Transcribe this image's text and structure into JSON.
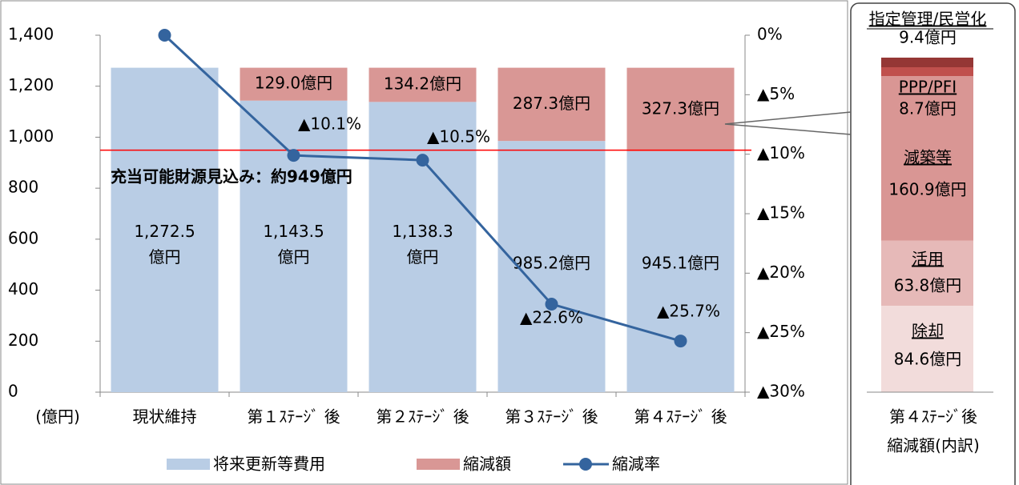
{
  "chart_data": {
    "type": "bar",
    "categories": [
      "現状維持",
      "第１ｽﾃｰｼﾞ 後",
      "第２ｽﾃｰｼﾞ 後",
      "第３ｽﾃｰｼﾞ 後",
      "第４ｽﾃｰｼﾞ 後"
    ],
    "series": [
      {
        "name": "将来更新等費用",
        "color": "#b9cde5",
        "values": [
          1272.5,
          1143.5,
          1138.3,
          985.2,
          945.1
        ],
        "value_labels": [
          "1,272.5\n億円",
          "1,143.5\n億円",
          "1,138.3\n億円",
          "985.2億円",
          "945.1億円"
        ]
      },
      {
        "name": "縮減額",
        "color": "#d99795",
        "values": [
          null,
          129.0,
          134.2,
          287.3,
          327.3
        ],
        "value_labels": [
          null,
          "129.0億円",
          "134.2億円",
          "287.3億円",
          "327.3億円"
        ]
      },
      {
        "name": "縮減率",
        "type": "line",
        "axis": "y2",
        "color": "#34649e",
        "label_color": "#4f81bd",
        "values": [
          0,
          -10.1,
          -10.5,
          -22.6,
          -25.7
        ],
        "value_labels": [
          null,
          "▲10.1%",
          "▲10.5%",
          "▲22.6%",
          "▲25.7%"
        ]
      }
    ],
    "y_unit_label": "(億円)",
    "ylim": [
      0,
      1400
    ],
    "yticks": [
      0,
      200,
      400,
      600,
      800,
      {
        "value": 1000,
        "label": "1,000"
      },
      {
        "value": 1200,
        "label": "1,200"
      },
      {
        "value": 1400,
        "label": "1,400"
      }
    ],
    "y2lim": [
      -30,
      0
    ],
    "y2ticks": [
      {
        "value": -30,
        "label": "▲30%"
      },
      {
        "value": -25,
        "label": "▲25%"
      },
      {
        "value": -20,
        "label": "▲20%"
      },
      {
        "value": -15,
        "label": "▲15%"
      },
      {
        "value": -10,
        "label": "▲10%"
      },
      {
        "value": -5,
        "label": "▲5%"
      },
      {
        "value": 0,
        "label": "0%"
      }
    ],
    "reference_line": {
      "value": 949,
      "label": "充当可能財源見込み：約949億円",
      "color": "#ff0000"
    },
    "breakdown": {
      "title_lines": [
        "第４ｽﾃｰｼﾞ後",
        "縮減額(内訳)"
      ],
      "segments": [
        {
          "name": "除却",
          "value": 84.6,
          "value_label": "84.6億円",
          "color": "#f2dcdb"
        },
        {
          "name": "活用",
          "value": 63.8,
          "value_label": "63.8億円",
          "color": "#e6b9b8"
        },
        {
          "name": "減築等",
          "value": 160.9,
          "value_label": "160.9億円",
          "color": "#d99694"
        },
        {
          "name": "PPP/PFI",
          "value": 8.7,
          "value_label": "8.7億円",
          "color": "#c0504d"
        },
        {
          "name": "指定管理/民営化",
          "value": 9.4,
          "value_label": "9.4億円",
          "color": "#953735"
        }
      ]
    }
  }
}
